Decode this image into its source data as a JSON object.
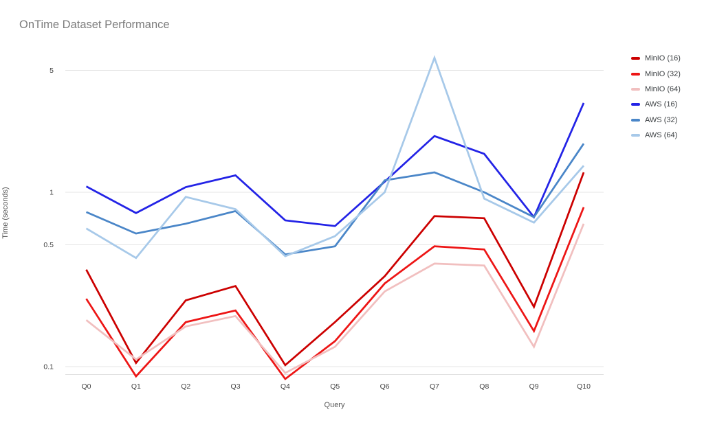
{
  "title": "OnTime Dataset Performance",
  "colors": {
    "grid": "#e6e6e6",
    "axis_line": "#e0e0e0",
    "tick_label": "#424242",
    "title_text": "#7b7b7b",
    "axis_title_text": "#555555",
    "legend_text": "#3c4043"
  },
  "chart_data": {
    "type": "line",
    "title": "OnTime Dataset Performance",
    "xlabel": "Query",
    "ylabel": "Time (seconds)",
    "yscale": "log",
    "grid": true,
    "legend_position": "right",
    "ylim": [
      0.08,
      6.5
    ],
    "yticks": [
      5,
      1,
      0.5,
      0.1
    ],
    "categories": [
      "Q0",
      "Q1",
      "Q2",
      "Q3",
      "Q4",
      "Q5",
      "Q6",
      "Q7",
      "Q8",
      "Q9",
      "Q10"
    ],
    "series": [
      {
        "name": "MinIO (16)",
        "color": "#cc0000",
        "values": [
          0.36,
          0.105,
          0.24,
          0.29,
          0.102,
          0.18,
          0.33,
          0.73,
          0.71,
          0.22,
          1.3
        ]
      },
      {
        "name": "MinIO (32)",
        "color": "#ed1515",
        "values": [
          0.245,
          0.088,
          0.18,
          0.21,
          0.085,
          0.14,
          0.3,
          0.49,
          0.47,
          0.16,
          0.82
        ]
      },
      {
        "name": "MinIO (64)",
        "color": "#f1bfbf",
        "values": [
          0.185,
          0.11,
          0.17,
          0.195,
          0.092,
          0.13,
          0.27,
          0.39,
          0.38,
          0.13,
          0.66
        ]
      },
      {
        "name": "AWS (16)",
        "color": "#2323e6",
        "values": [
          1.08,
          0.76,
          1.07,
          1.25,
          0.69,
          0.64,
          1.15,
          2.1,
          1.66,
          0.72,
          3.25
        ]
      },
      {
        "name": "AWS (32)",
        "color": "#4a86c8",
        "values": [
          0.77,
          0.58,
          0.66,
          0.78,
          0.44,
          0.49,
          1.17,
          1.3,
          1.0,
          0.72,
          1.9
        ]
      },
      {
        "name": "AWS (64)",
        "color": "#a7c9e9",
        "values": [
          0.62,
          0.42,
          0.94,
          0.8,
          0.43,
          0.56,
          1.0,
          5.9,
          0.92,
          0.67,
          1.42
        ]
      }
    ]
  }
}
